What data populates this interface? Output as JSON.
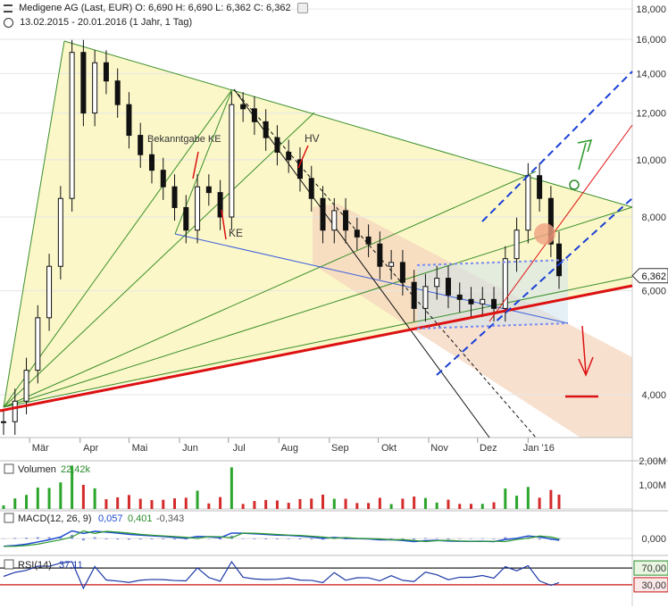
{
  "header": {
    "title_line": "Medigene AG (Last, EUR)  O: 6,690  H: 6,690  L: 6,362  C: 6,362",
    "range_line": "13.02.2015 - 20.01.2016 (1 Jahr, 1 Tag)"
  },
  "annotations": {
    "bekanntgabe": "Bekanntgabe KE",
    "ke": "KE",
    "hv": "HV"
  },
  "colors": {
    "price": "#111111",
    "fan_green": "#3a8f2a",
    "support_red": "#dd1111",
    "channel_blue": "#1a3fd6",
    "channel_fill": "#f6d6bf",
    "triangle_fill": "#fbf7c8",
    "volume_green": "#2ba52b",
    "volume_red": "#d42b2b",
    "macd_line": "#1e4bd0",
    "signal_line": "#2d9b2d",
    "rsi_line": "#1e3aa8"
  },
  "chart_data": [
    {
      "type": "candlestick",
      "title": "Medigene AG (Last, EUR)",
      "ohlc_last": {
        "open": "6,690",
        "high": "6,690",
        "low": "6,362",
        "close": "6,362"
      },
      "x_ticks": [
        "Mär",
        "Apr",
        "Mai",
        "Jun",
        "Jul",
        "Aug",
        "Sep",
        "Okt",
        "Nov",
        "Dez",
        "Jan '16"
      ],
      "y_ticks": [
        "4,000",
        "6,000",
        "8,000",
        "10,000",
        "12,000",
        "14,000",
        "16,000",
        "18,000"
      ],
      "y_scale": "log",
      "ylim": [
        3.2,
        18.4
      ],
      "last_price_label": "6,362",
      "close_by_week": [
        {
          "date": "2015-02-13",
          "close": 3.6
        },
        {
          "date": "2015-02-20",
          "close": 3.9
        },
        {
          "date": "2015-02-27",
          "close": 4.4
        },
        {
          "date": "2015-03-06",
          "close": 5.4
        },
        {
          "date": "2015-03-13",
          "close": 6.6
        },
        {
          "date": "2015-03-20",
          "close": 8.6
        },
        {
          "date": "2015-03-27",
          "close": 15.2
        },
        {
          "date": "2015-04-03",
          "close": 12.0
        },
        {
          "date": "2015-04-10",
          "close": 14.6
        },
        {
          "date": "2015-04-17",
          "close": 13.6
        },
        {
          "date": "2015-04-24",
          "close": 12.4
        },
        {
          "date": "2015-05-01",
          "close": 11.0
        },
        {
          "date": "2015-05-08",
          "close": 10.2
        },
        {
          "date": "2015-05-15",
          "close": 9.6
        },
        {
          "date": "2015-05-22",
          "close": 9.0
        },
        {
          "date": "2015-05-29",
          "close": 8.3
        },
        {
          "date": "2015-06-05",
          "close": 7.6
        },
        {
          "date": "2015-06-12",
          "close": 9.0
        },
        {
          "date": "2015-06-19",
          "close": 8.8
        },
        {
          "date": "2015-06-26",
          "close": 8.0
        },
        {
          "date": "2015-07-03",
          "close": 12.4
        },
        {
          "date": "2015-07-10",
          "close": 12.2
        },
        {
          "date": "2015-07-17",
          "close": 11.6
        },
        {
          "date": "2015-07-24",
          "close": 10.9
        },
        {
          "date": "2015-07-31",
          "close": 10.3
        },
        {
          "date": "2015-08-07",
          "close": 10.0
        },
        {
          "date": "2015-08-14",
          "close": 9.3
        },
        {
          "date": "2015-08-21",
          "close": 8.6
        },
        {
          "date": "2015-08-28",
          "close": 7.6
        },
        {
          "date": "2015-09-04",
          "close": 8.2
        },
        {
          "date": "2015-09-11",
          "close": 7.6
        },
        {
          "date": "2015-09-18",
          "close": 7.4
        },
        {
          "date": "2015-09-25",
          "close": 7.2
        },
        {
          "date": "2015-10-02",
          "close": 6.6
        },
        {
          "date": "2015-10-09",
          "close": 6.7
        },
        {
          "date": "2015-10-16",
          "close": 6.2
        },
        {
          "date": "2015-10-23",
          "close": 5.6
        },
        {
          "date": "2015-10-30",
          "close": 6.1
        },
        {
          "date": "2015-11-06",
          "close": 6.3
        },
        {
          "date": "2015-11-13",
          "close": 5.9
        },
        {
          "date": "2015-11-20",
          "close": 5.8
        },
        {
          "date": "2015-11-27",
          "close": 5.7
        },
        {
          "date": "2015-12-04",
          "close": 5.8
        },
        {
          "date": "2015-12-11",
          "close": 5.6
        },
        {
          "date": "2015-12-18",
          "close": 6.8
        },
        {
          "date": "2015-12-25",
          "close": 7.6
        },
        {
          "date": "2016-01-01",
          "close": 9.4
        },
        {
          "date": "2016-01-08",
          "close": 8.6
        },
        {
          "date": "2016-01-15",
          "close": 7.2
        },
        {
          "date": "2016-01-20",
          "close": 6.362
        }
      ]
    },
    {
      "type": "bar",
      "title": "Volumen",
      "value_label": "22,42k",
      "y_ticks": [
        "1,00M",
        "2,00M"
      ],
      "ylim": [
        0,
        2000000
      ]
    },
    {
      "type": "line",
      "title": "MACD(12, 26, 9)",
      "values": [
        "0,057",
        "0,401",
        "-0,343"
      ],
      "y_ticks": [
        "0,000"
      ]
    },
    {
      "type": "line",
      "title": "RSI(14)",
      "value": "37,11",
      "y_ticks": [
        "30,00",
        "70,00"
      ],
      "ylim": [
        0,
        100
      ]
    }
  ]
}
